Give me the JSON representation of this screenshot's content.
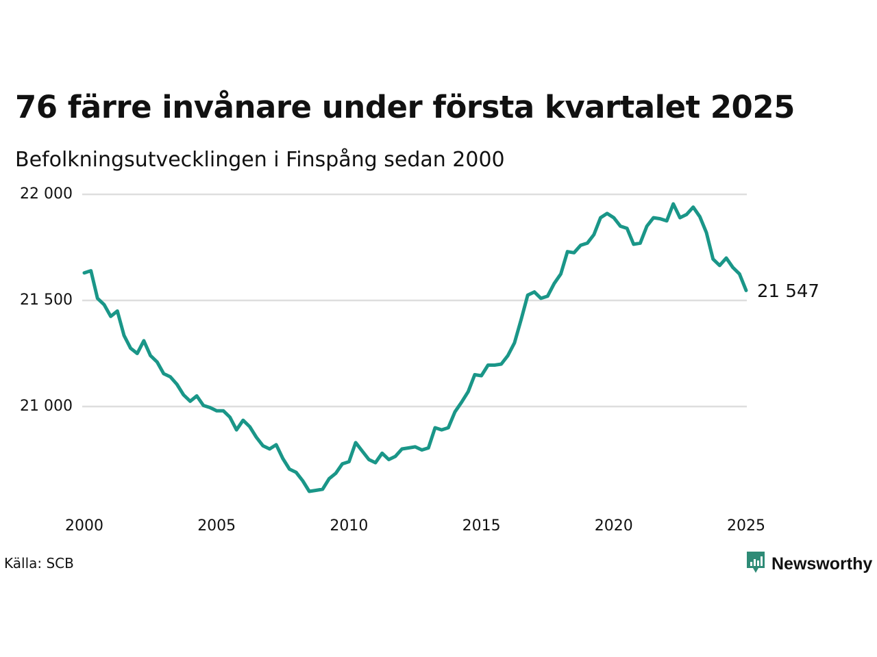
{
  "title": "76 färre invånare under första kvartalet 2025",
  "subtitle": "Befolkningsutvecklingen i Finspång sedan 2000",
  "source": "Källa: SCB",
  "brand": {
    "name": "Newsworthy",
    "color": "#2E8B76",
    "icon": "newsworthy-logo-icon"
  },
  "chart_data": {
    "type": "line",
    "title": "76 färre invånare under första kvartalet 2025",
    "subtitle": "Befolkningsutvecklingen i Finspång sedan 2000",
    "line_color": "#1A9688",
    "grid": true,
    "xlim": [
      2000,
      2025
    ],
    "ylim": [
      20560,
      22000
    ],
    "x_ticks": [
      2000,
      2005,
      2010,
      2015,
      2020,
      2025
    ],
    "x_tick_labels": [
      "2000",
      "2005",
      "2010",
      "2015",
      "2020",
      "2025"
    ],
    "y_ticks": [
      21000,
      21500,
      22000
    ],
    "y_tick_labels": [
      "21 000",
      "21 500",
      "22 000"
    ],
    "end_label": "21 547",
    "series": [
      {
        "x": [
          2000.0,
          2000.25,
          2000.5,
          2000.75,
          2001.0,
          2001.25,
          2001.5,
          2001.75,
          2002.0,
          2002.25,
          2002.5,
          2002.75,
          2003.0,
          2003.25,
          2003.5,
          2003.75,
          2004.0,
          2004.25,
          2004.5,
          2004.75,
          2005.0,
          2005.25,
          2005.5,
          2005.75,
          2006.0,
          2006.25,
          2006.5,
          2006.75,
          2007.0,
          2007.25,
          2007.5,
          2007.75,
          2008.0,
          2008.25,
          2008.5,
          2008.75,
          2009.0,
          2009.25,
          2009.5,
          2009.75,
          2010.0,
          2010.25,
          2010.5,
          2010.75,
          2011.0,
          2011.25,
          2011.5,
          2011.75,
          2012.0,
          2012.25,
          2012.5,
          2012.75,
          2013.0,
          2013.25,
          2013.5,
          2013.75,
          2014.0,
          2014.25,
          2014.5,
          2014.75,
          2015.0,
          2015.25,
          2015.5,
          2015.75,
          2016.0,
          2016.25,
          2016.5,
          2016.75,
          2017.0,
          2017.25,
          2017.5,
          2017.75,
          2018.0,
          2018.25,
          2018.5,
          2018.75,
          2019.0,
          2019.25,
          2019.5,
          2019.75,
          2020.0,
          2020.25,
          2020.5,
          2020.75,
          2021.0,
          2021.25,
          2021.5,
          2021.75,
          2022.0,
          2022.25,
          2022.5,
          2022.75,
          2023.0,
          2023.25,
          2023.5,
          2023.75,
          2024.0,
          2024.25,
          2024.5,
          2024.75,
          2025.0
        ],
        "y": [
          21630,
          21640,
          21510,
          21480,
          21425,
          21450,
          21335,
          21275,
          21250,
          21310,
          21240,
          21210,
          21155,
          21140,
          21105,
          21055,
          21025,
          21050,
          21005,
          20995,
          20980,
          20980,
          20950,
          20890,
          20935,
          20905,
          20855,
          20815,
          20800,
          20820,
          20755,
          20705,
          20690,
          20650,
          20600,
          20605,
          20610,
          20660,
          20685,
          20730,
          20740,
          20830,
          20790,
          20750,
          20735,
          20780,
          20750,
          20765,
          20800,
          20805,
          20810,
          20795,
          20805,
          20900,
          20890,
          20900,
          20975,
          21020,
          21070,
          21150,
          21145,
          21195,
          21195,
          21200,
          21240,
          21300,
          21410,
          21525,
          21540,
          21510,
          21520,
          21580,
          21625,
          21730,
          21725,
          21760,
          21770,
          21810,
          21890,
          21910,
          21890,
          21850,
          21840,
          21765,
          21770,
          21850,
          21890,
          21885,
          21875,
          21955,
          21890,
          21905,
          21940,
          21895,
          21820,
          21695,
          21665,
          21700,
          21655,
          21625,
          21547
        ]
      }
    ]
  }
}
